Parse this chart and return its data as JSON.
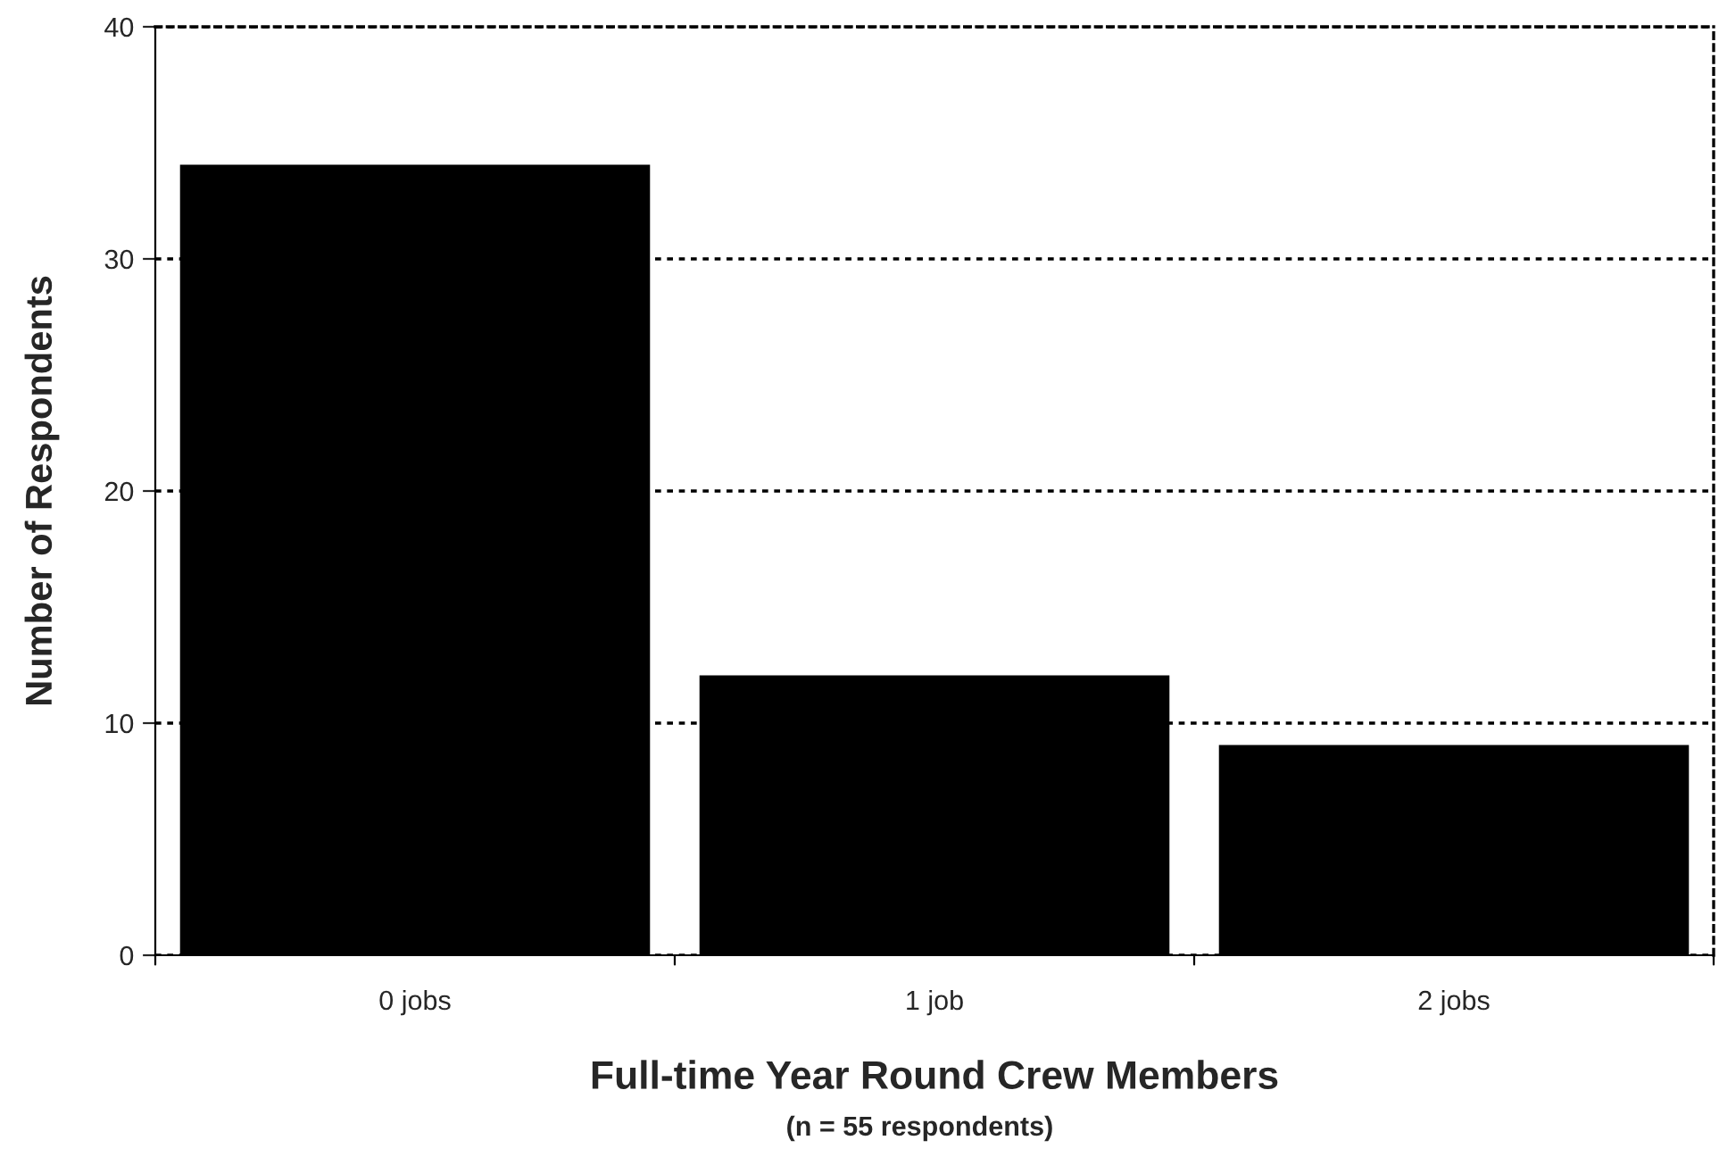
{
  "chart_data": {
    "type": "bar",
    "categories": [
      "0 jobs",
      "1 job",
      "2 jobs"
    ],
    "values": [
      34,
      12,
      9
    ],
    "color": "#000000",
    "xlabel": "Full-time Year Round Crew Members",
    "ylabel": "Number of Respondents",
    "annotations": [
      "(n = 55 respondents)"
    ],
    "ylim": [
      0,
      40
    ],
    "yticks": [
      0,
      10,
      20,
      30,
      40
    ],
    "grid": "y",
    "legend": false
  }
}
